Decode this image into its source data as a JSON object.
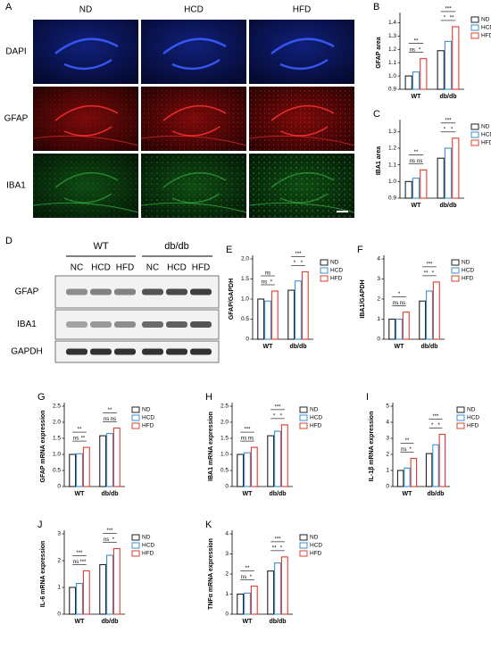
{
  "figure": {
    "panel_a": {
      "label": "A",
      "columns": [
        "ND",
        "HCD",
        "HFD"
      ],
      "rows": [
        "DAPI",
        "GFAP",
        "IBA1"
      ]
    },
    "panel_d": {
      "label": "D",
      "groups": [
        "WT",
        "db/db"
      ],
      "lanes": [
        "NC",
        "HCD",
        "HFD",
        "NC",
        "HCD",
        "HFD"
      ],
      "rows": [
        "GFAP",
        "IBA1",
        "GAPDH"
      ]
    }
  },
  "chart_data": [
    {
      "type": "bar",
      "label": "B",
      "ylabel": "GFAP area",
      "categories": [
        "WT",
        "db/db"
      ],
      "series": [
        {
          "name": "ND",
          "color": "#222222",
          "values": [
            1.0,
            1.19
          ]
        },
        {
          "name": "HCD",
          "color": "#3a8fd0",
          "values": [
            1.03,
            1.26
          ]
        },
        {
          "name": "HFD",
          "color": "#e03c31",
          "values": [
            1.13,
            1.37
          ]
        }
      ],
      "ylim": [
        0.9,
        1.45
      ],
      "yticks": [
        0.9,
        {
          "value": 1,
          "label": "1.0"
        },
        1.1,
        1.2,
        1.3,
        1.4
      ],
      "annotations": [
        {
          "text": "ns",
          "category": 0,
          "pair": [
            0,
            1
          ]
        },
        {
          "text": "*",
          "category": 0,
          "pair": [
            1,
            2
          ]
        },
        {
          "text": "**",
          "category": 0,
          "pair": [
            0,
            2
          ]
        },
        {
          "text": "*",
          "category": 1,
          "pair": [
            0,
            1
          ]
        },
        {
          "text": "**",
          "category": 1,
          "pair": [
            1,
            2
          ]
        },
        {
          "text": "***",
          "category": 1,
          "pair": [
            0,
            2
          ]
        }
      ]
    },
    {
      "type": "bar",
      "label": "C",
      "ylabel": "IBA1 area",
      "categories": [
        "WT",
        "db/db"
      ],
      "series": [
        {
          "name": "ND",
          "color": "#222222",
          "values": [
            1.0,
            1.14
          ]
        },
        {
          "name": "HCD",
          "color": "#3a8fd0",
          "values": [
            1.02,
            1.2
          ]
        },
        {
          "name": "HFD",
          "color": "#e03c31",
          "values": [
            1.07,
            1.26
          ]
        }
      ],
      "ylim": [
        0.9,
        1.35
      ],
      "yticks": [
        0.9,
        {
          "value": 1,
          "label": "1.0"
        },
        1.1,
        1.2,
        1.3
      ],
      "annotations": [
        {
          "text": "ns",
          "category": 0,
          "pair": [
            0,
            1
          ]
        },
        {
          "text": "ns",
          "category": 0,
          "pair": [
            1,
            2
          ]
        },
        {
          "text": "**",
          "category": 0,
          "pair": [
            0,
            2
          ]
        },
        {
          "text": "*",
          "category": 1,
          "pair": [
            0,
            1
          ]
        },
        {
          "text": "*",
          "category": 1,
          "pair": [
            1,
            2
          ]
        },
        {
          "text": "***",
          "category": 1,
          "pair": [
            0,
            2
          ]
        }
      ]
    },
    {
      "type": "bar",
      "label": "E",
      "ylabel": "GFAP/GAPDH",
      "categories": [
        "WT",
        "db/db"
      ],
      "series": [
        {
          "name": "ND",
          "color": "#222222",
          "values": [
            1.0,
            1.22
          ]
        },
        {
          "name": "HCD",
          "color": "#3a8fd0",
          "values": [
            0.95,
            1.45
          ]
        },
        {
          "name": "HFD",
          "color": "#e03c31",
          "values": [
            1.2,
            1.68
          ]
        }
      ],
      "ylim": [
        0,
        2
      ],
      "yticks": [
        0,
        0.5,
        {
          "value": 1,
          "label": "1.0"
        },
        1.5,
        {
          "value": 2,
          "label": "2.0"
        }
      ],
      "annotations": [
        {
          "text": "ns",
          "category": 0,
          "pair": [
            0,
            1
          ]
        },
        {
          "text": "*",
          "category": 0,
          "pair": [
            1,
            2
          ]
        },
        {
          "text": "ns",
          "category": 0,
          "pair": [
            0,
            2
          ]
        },
        {
          "text": "*",
          "category": 1,
          "pair": [
            0,
            1
          ]
        },
        {
          "text": "*",
          "category": 1,
          "pair": [
            1,
            2
          ]
        },
        {
          "text": "***",
          "category": 1,
          "pair": [
            0,
            2
          ]
        }
      ]
    },
    {
      "type": "bar",
      "label": "F",
      "ylabel": "IBA1/GAPDH",
      "categories": [
        "WT",
        "db/db"
      ],
      "series": [
        {
          "name": "ND",
          "color": "#222222",
          "values": [
            1.0,
            1.9
          ]
        },
        {
          "name": "HCD",
          "color": "#3a8fd0",
          "values": [
            1.0,
            2.4
          ]
        },
        {
          "name": "HFD",
          "color": "#e03c31",
          "values": [
            1.35,
            2.85
          ]
        }
      ],
      "ylim": [
        0,
        4
      ],
      "yticks": [
        0,
        1,
        2,
        3,
        4
      ],
      "annotations": [
        {
          "text": "ns",
          "category": 0,
          "pair": [
            0,
            1
          ]
        },
        {
          "text": "ns",
          "category": 0,
          "pair": [
            1,
            2
          ]
        },
        {
          "text": "*",
          "category": 0,
          "pair": [
            0,
            2
          ]
        },
        {
          "text": "**",
          "category": 1,
          "pair": [
            0,
            1
          ]
        },
        {
          "text": "*",
          "category": 1,
          "pair": [
            1,
            2
          ]
        },
        {
          "text": "***",
          "category": 1,
          "pair": [
            0,
            2
          ]
        }
      ]
    },
    {
      "type": "bar",
      "label": "G",
      "ylabel": "GFAP mRNA expression",
      "categories": [
        "WT",
        "db/db"
      ],
      "series": [
        {
          "name": "ND",
          "color": "#222222",
          "values": [
            1.0,
            1.58
          ]
        },
        {
          "name": "HCD",
          "color": "#3a8fd0",
          "values": [
            1.02,
            1.65
          ]
        },
        {
          "name": "HFD",
          "color": "#e03c31",
          "values": [
            1.22,
            1.82
          ]
        }
      ],
      "ylim": [
        0,
        2.5
      ],
      "yticks": [
        0,
        0.5,
        {
          "value": 1,
          "label": "1.0"
        },
        1.5,
        {
          "value": 2,
          "label": "2.0"
        },
        2.5
      ],
      "annotations": [
        {
          "text": "ns",
          "category": 0,
          "pair": [
            0,
            1
          ]
        },
        {
          "text": "**",
          "category": 0,
          "pair": [
            1,
            2
          ]
        },
        {
          "text": "**",
          "category": 0,
          "pair": [
            0,
            2
          ]
        },
        {
          "text": "ns",
          "category": 1,
          "pair": [
            0,
            1
          ]
        },
        {
          "text": "ns",
          "category": 1,
          "pair": [
            1,
            2
          ]
        },
        {
          "text": "**",
          "category": 1,
          "pair": [
            0,
            2
          ]
        }
      ]
    },
    {
      "type": "bar",
      "label": "H",
      "ylabel": "IBA1 mRNA expression",
      "categories": [
        "WT",
        "db/db"
      ],
      "series": [
        {
          "name": "ND",
          "color": "#222222",
          "values": [
            1.0,
            1.58
          ]
        },
        {
          "name": "HCD",
          "color": "#3a8fd0",
          "values": [
            1.05,
            1.72
          ]
        },
        {
          "name": "HFD",
          "color": "#e03c31",
          "values": [
            1.22,
            1.92
          ]
        }
      ],
      "ylim": [
        0,
        2.5
      ],
      "yticks": [
        0,
        0.5,
        {
          "value": 1,
          "label": "1.0"
        },
        1.5,
        {
          "value": 2,
          "label": "2.0"
        },
        2.5
      ],
      "annotations": [
        {
          "text": "ns",
          "category": 0,
          "pair": [
            0,
            1
          ]
        },
        {
          "text": "ns",
          "category": 0,
          "pair": [
            1,
            2
          ]
        },
        {
          "text": "***",
          "category": 0,
          "pair": [
            0,
            2
          ]
        },
        {
          "text": "*",
          "category": 1,
          "pair": [
            0,
            1
          ]
        },
        {
          "text": "*",
          "category": 1,
          "pair": [
            1,
            2
          ]
        },
        {
          "text": "***",
          "category": 1,
          "pair": [
            0,
            2
          ]
        }
      ]
    },
    {
      "type": "bar",
      "label": "I",
      "ylabel": "IL-1β mRNA expression",
      "categories": [
        "WT",
        "db/db"
      ],
      "series": [
        {
          "name": "ND",
          "color": "#222222",
          "values": [
            1.0,
            2.05
          ]
        },
        {
          "name": "HCD",
          "color": "#3a8fd0",
          "values": [
            1.15,
            2.6
          ]
        },
        {
          "name": "HFD",
          "color": "#e03c31",
          "values": [
            1.75,
            3.25
          ]
        }
      ],
      "ylim": [
        0,
        5
      ],
      "yticks": [
        0,
        1,
        2,
        3,
        4,
        5
      ],
      "annotations": [
        {
          "text": "ns",
          "category": 0,
          "pair": [
            0,
            1
          ]
        },
        {
          "text": "*",
          "category": 0,
          "pair": [
            1,
            2
          ]
        },
        {
          "text": "**",
          "category": 0,
          "pair": [
            0,
            2
          ]
        },
        {
          "text": "*",
          "category": 1,
          "pair": [
            0,
            1
          ]
        },
        {
          "text": "*",
          "category": 1,
          "pair": [
            1,
            2
          ]
        },
        {
          "text": "***",
          "category": 1,
          "pair": [
            0,
            2
          ]
        }
      ]
    },
    {
      "type": "bar",
      "label": "J",
      "ylabel": "IL-6 mRNA expression",
      "categories": [
        "WT",
        "db/db"
      ],
      "series": [
        {
          "name": "ND",
          "color": "#222222",
          "values": [
            1.0,
            1.85
          ]
        },
        {
          "name": "HCD",
          "color": "#3a8fd0",
          "values": [
            1.15,
            2.2
          ]
        },
        {
          "name": "HFD",
          "color": "#e03c31",
          "values": [
            1.62,
            2.45
          ]
        }
      ],
      "ylim": [
        0,
        3
      ],
      "yticks": [
        0,
        1,
        2,
        3
      ],
      "annotations": [
        {
          "text": "ns",
          "category": 0,
          "pair": [
            0,
            1
          ]
        },
        {
          "text": "***",
          "category": 0,
          "pair": [
            1,
            2
          ]
        },
        {
          "text": "***",
          "category": 0,
          "pair": [
            0,
            2
          ]
        },
        {
          "text": "ns",
          "category": 1,
          "pair": [
            0,
            1
          ]
        },
        {
          "text": "*",
          "category": 1,
          "pair": [
            1,
            2
          ]
        },
        {
          "text": "***",
          "category": 1,
          "pair": [
            0,
            2
          ]
        }
      ]
    },
    {
      "type": "bar",
      "label": "K",
      "ylabel": "TNFα mRNA expression",
      "categories": [
        "WT",
        "db/db"
      ],
      "series": [
        {
          "name": "ND",
          "color": "#222222",
          "values": [
            1.0,
            2.15
          ]
        },
        {
          "name": "HCD",
          "color": "#3a8fd0",
          "values": [
            1.05,
            2.55
          ]
        },
        {
          "name": "HFD",
          "color": "#e03c31",
          "values": [
            1.4,
            2.85
          ]
        }
      ],
      "ylim": [
        0,
        4
      ],
      "yticks": [
        0,
        1,
        2,
        3,
        4
      ],
      "annotations": [
        {
          "text": "ns",
          "category": 0,
          "pair": [
            0,
            1
          ]
        },
        {
          "text": "*",
          "category": 0,
          "pair": [
            1,
            2
          ]
        },
        {
          "text": "**",
          "category": 0,
          "pair": [
            0,
            2
          ]
        },
        {
          "text": "**",
          "category": 1,
          "pair": [
            0,
            1
          ]
        },
        {
          "text": "*",
          "category": 1,
          "pair": [
            1,
            2
          ]
        },
        {
          "text": "***",
          "category": 1,
          "pair": [
            0,
            2
          ]
        }
      ]
    }
  ]
}
